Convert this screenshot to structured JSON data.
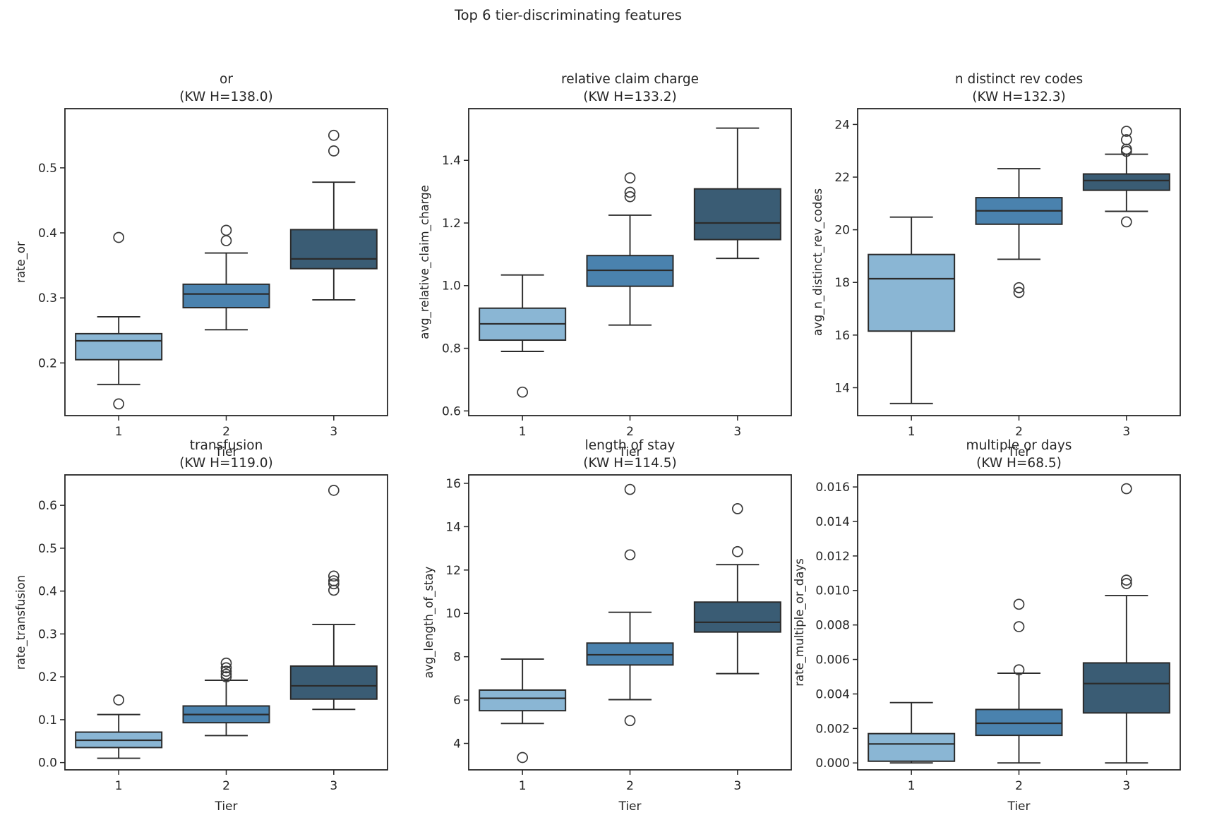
{
  "figure": {
    "title": "Top 6 tier-discriminating features"
  },
  "palette": {
    "tier1_fill": "#8ab6d4",
    "tier2_fill": "#4a82ae",
    "tier3_fill": "#3a5c74",
    "box_edge": "#2b2b2b",
    "flier_edge": "#3a3a3a",
    "axis_color": "#262626",
    "text_color": "#262626"
  },
  "xlabel": "Tier",
  "categories": [
    "1",
    "2",
    "3"
  ],
  "chart_data": [
    {
      "type": "box",
      "title": "or",
      "subtitle": "(KW H=138.0)",
      "kw_h": 138.0,
      "ylabel": "rate_or",
      "xlabel": "Tier",
      "categories": [
        "1",
        "2",
        "3"
      ],
      "yticks": [
        0.2,
        0.3,
        0.4,
        0.5
      ],
      "ytick_labels": [
        "0.2",
        "0.3",
        "0.4",
        "0.5"
      ],
      "ylim": [
        0.119,
        0.591
      ],
      "boxes": [
        {
          "tier": "1",
          "whislo": 0.167,
          "q1": 0.205,
          "med": 0.234,
          "q3": 0.245,
          "whishi": 0.271,
          "fliers": [
            0.137,
            0.393
          ]
        },
        {
          "tier": "2",
          "whislo": 0.251,
          "q1": 0.285,
          "med": 0.306,
          "q3": 0.321,
          "whishi": 0.369,
          "fliers": [
            0.388,
            0.404
          ]
        },
        {
          "tier": "3",
          "whislo": 0.297,
          "q1": 0.345,
          "med": 0.36,
          "q3": 0.405,
          "whishi": 0.478,
          "fliers": [
            0.526,
            0.55
          ]
        }
      ]
    },
    {
      "type": "box",
      "title": "relative claim charge",
      "subtitle": "(KW H=133.2)",
      "kw_h": 133.2,
      "ylabel": "avg_relative_claim_charge",
      "xlabel": "Tier",
      "categories": [
        "1",
        "2",
        "3"
      ],
      "yticks": [
        0.6,
        0.8,
        1.0,
        1.2,
        1.4
      ],
      "ytick_labels": [
        "0.6",
        "0.8",
        "1.0",
        "1.2",
        "1.4"
      ],
      "ylim": [
        0.585,
        1.565
      ],
      "boxes": [
        {
          "tier": "1",
          "whislo": 0.79,
          "q1": 0.826,
          "med": 0.878,
          "q3": 0.928,
          "whishi": 1.034,
          "fliers": [
            0.66
          ]
        },
        {
          "tier": "2",
          "whislo": 0.874,
          "q1": 0.998,
          "med": 1.049,
          "q3": 1.096,
          "whishi": 1.225,
          "fliers": [
            1.284,
            1.298,
            1.344
          ]
        },
        {
          "tier": "3",
          "whislo": 1.087,
          "q1": 1.147,
          "med": 1.2,
          "q3": 1.309,
          "whishi": 1.503,
          "fliers": []
        }
      ]
    },
    {
      "type": "box",
      "title": "n distinct rev codes",
      "subtitle": "(KW H=132.3)",
      "kw_h": 132.3,
      "ylabel": "avg_n_distinct_rev_codes",
      "xlabel": "Tier",
      "categories": [
        "1",
        "2",
        "3"
      ],
      "yticks": [
        14,
        16,
        18,
        20,
        22,
        24
      ],
      "ytick_labels": [
        "14",
        "16",
        "18",
        "20",
        "22",
        "24"
      ],
      "ylim": [
        12.94,
        24.6
      ],
      "boxes": [
        {
          "tier": "1",
          "whislo": 13.4,
          "q1": 16.15,
          "med": 18.14,
          "q3": 19.06,
          "whishi": 20.48,
          "fliers": []
        },
        {
          "tier": "2",
          "whislo": 18.88,
          "q1": 20.21,
          "med": 20.72,
          "q3": 21.22,
          "whishi": 22.32,
          "fliers": [
            17.62,
            17.8
          ]
        },
        {
          "tier": "3",
          "whislo": 20.7,
          "q1": 21.5,
          "med": 21.87,
          "q3": 22.12,
          "whishi": 22.87,
          "fliers": [
            20.3,
            22.98,
            23.06,
            23.42,
            23.74
          ]
        }
      ]
    },
    {
      "type": "box",
      "title": "transfusion",
      "subtitle": "(KW H=119.0)",
      "kw_h": 119.0,
      "ylabel": "rate_transfusion",
      "xlabel": "Tier",
      "categories": [
        "1",
        "2",
        "3"
      ],
      "yticks": [
        0.0,
        0.1,
        0.2,
        0.3,
        0.4,
        0.5,
        0.6
      ],
      "ytick_labels": [
        "0.0",
        "0.1",
        "0.2",
        "0.3",
        "0.4",
        "0.5",
        "0.6"
      ],
      "ylim": [
        -0.017,
        0.671
      ],
      "boxes": [
        {
          "tier": "1",
          "whislo": 0.01,
          "q1": 0.035,
          "med": 0.052,
          "q3": 0.071,
          "whishi": 0.112,
          "fliers": [
            0.146
          ]
        },
        {
          "tier": "2",
          "whislo": 0.063,
          "q1": 0.093,
          "med": 0.112,
          "q3": 0.132,
          "whishi": 0.192,
          "fliers": [
            0.2,
            0.206,
            0.213,
            0.221,
            0.232
          ]
        },
        {
          "tier": "3",
          "whislo": 0.124,
          "q1": 0.148,
          "med": 0.179,
          "q3": 0.225,
          "whishi": 0.322,
          "fliers": [
            0.402,
            0.417,
            0.424,
            0.435,
            0.635
          ]
        }
      ]
    },
    {
      "type": "box",
      "title": "length of stay",
      "subtitle": "(KW H=114.5)",
      "kw_h": 114.5,
      "ylabel": "avg_length_of_stay",
      "xlabel": "Tier",
      "categories": [
        "1",
        "2",
        "3"
      ],
      "yticks": [
        4,
        6,
        8,
        10,
        12,
        14,
        16
      ],
      "ytick_labels": [
        "4",
        "6",
        "8",
        "10",
        "12",
        "14",
        "16"
      ],
      "ylim": [
        2.78,
        16.39
      ],
      "boxes": [
        {
          "tier": "1",
          "whislo": 4.92,
          "q1": 5.51,
          "med": 6.08,
          "q3": 6.46,
          "whishi": 7.89,
          "fliers": [
            3.35
          ]
        },
        {
          "tier": "2",
          "whislo": 6.02,
          "q1": 7.62,
          "med": 8.09,
          "q3": 8.63,
          "whishi": 10.05,
          "fliers": [
            5.05,
            12.7,
            15.72
          ]
        },
        {
          "tier": "3",
          "whislo": 7.22,
          "q1": 9.14,
          "med": 9.59,
          "q3": 10.52,
          "whishi": 12.25,
          "fliers": [
            12.85,
            14.83
          ]
        }
      ]
    },
    {
      "type": "box",
      "title": "multiple or days",
      "subtitle": "(KW H=68.5)",
      "kw_h": 68.5,
      "ylabel": "rate_multiple_or_days",
      "xlabel": "Tier",
      "categories": [
        "1",
        "2",
        "3"
      ],
      "yticks": [
        0.0,
        0.002,
        0.004,
        0.006,
        0.008,
        0.01,
        0.012,
        0.014,
        0.016
      ],
      "ytick_labels": [
        "0.000",
        "0.002",
        "0.004",
        "0.006",
        "0.008",
        "0.010",
        "0.012",
        "0.014",
        "0.016"
      ],
      "ylim": [
        -0.0004,
        0.0167
      ],
      "boxes": [
        {
          "tier": "1",
          "whislo": 0.0,
          "q1": 0.0001,
          "med": 0.0011,
          "q3": 0.0017,
          "whishi": 0.0035,
          "fliers": []
        },
        {
          "tier": "2",
          "whislo": 0.0,
          "q1": 0.0016,
          "med": 0.0023,
          "q3": 0.0031,
          "whishi": 0.0052,
          "fliers": [
            0.0054,
            0.0079,
            0.0092
          ]
        },
        {
          "tier": "3",
          "whislo": 0.0,
          "q1": 0.0029,
          "med": 0.0046,
          "q3": 0.0058,
          "whishi": 0.0097,
          "fliers": [
            0.0104,
            0.0106,
            0.0159
          ]
        }
      ]
    }
  ]
}
